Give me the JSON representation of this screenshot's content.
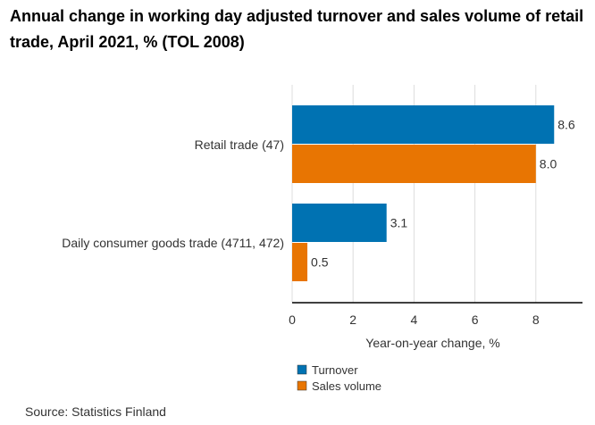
{
  "chart_data": {
    "type": "bar",
    "orientation": "horizontal",
    "title": "Annual change in working day adjusted turnover and sales volume of retail trade, April 2021, % (TOL 2008)",
    "categories": [
      "Retail trade (47)",
      "Daily consumer goods trade (4711, 472)"
    ],
    "series": [
      {
        "name": "Turnover",
        "values": [
          8.6,
          3.1
        ],
        "labels": [
          "8.6",
          "3.1"
        ],
        "color": "#0072b2"
      },
      {
        "name": "Sales volume",
        "values": [
          8.0,
          0.5
        ],
        "labels": [
          "8.0",
          "0.5"
        ],
        "color": "#e87502"
      }
    ],
    "xlabel": "Year-on-year change, %",
    "ylabel": "",
    "xlim": [
      0,
      9.6
    ],
    "xticks": [
      "0",
      "2",
      "4",
      "6",
      "8"
    ],
    "grid": true,
    "legend": "bottom",
    "source": "Source: Statistics Finland"
  }
}
